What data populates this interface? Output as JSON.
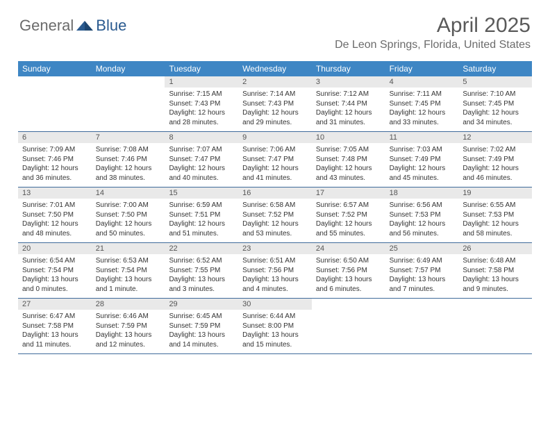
{
  "logo": {
    "text1": "General",
    "text2": "Blue"
  },
  "title": "April 2025",
  "location": "De Leon Springs, Florida, United States",
  "colors": {
    "header_bg": "#3e86c4",
    "header_text": "#ffffff",
    "daynum_bg": "#e9e9e9",
    "border": "#3e6a9a",
    "title_color": "#5a5a5a",
    "location_color": "#6b6b6b",
    "logo_gray": "#6b6b6b",
    "logo_blue": "#2a5a8f"
  },
  "day_headers": [
    "Sunday",
    "Monday",
    "Tuesday",
    "Wednesday",
    "Thursday",
    "Friday",
    "Saturday"
  ],
  "weeks": [
    [
      {
        "n": "",
        "sr": "",
        "ss": "",
        "dl": ""
      },
      {
        "n": "",
        "sr": "",
        "ss": "",
        "dl": ""
      },
      {
        "n": "1",
        "sr": "Sunrise: 7:15 AM",
        "ss": "Sunset: 7:43 PM",
        "dl": "Daylight: 12 hours and 28 minutes."
      },
      {
        "n": "2",
        "sr": "Sunrise: 7:14 AM",
        "ss": "Sunset: 7:43 PM",
        "dl": "Daylight: 12 hours and 29 minutes."
      },
      {
        "n": "3",
        "sr": "Sunrise: 7:12 AM",
        "ss": "Sunset: 7:44 PM",
        "dl": "Daylight: 12 hours and 31 minutes."
      },
      {
        "n": "4",
        "sr": "Sunrise: 7:11 AM",
        "ss": "Sunset: 7:45 PM",
        "dl": "Daylight: 12 hours and 33 minutes."
      },
      {
        "n": "5",
        "sr": "Sunrise: 7:10 AM",
        "ss": "Sunset: 7:45 PM",
        "dl": "Daylight: 12 hours and 34 minutes."
      }
    ],
    [
      {
        "n": "6",
        "sr": "Sunrise: 7:09 AM",
        "ss": "Sunset: 7:46 PM",
        "dl": "Daylight: 12 hours and 36 minutes."
      },
      {
        "n": "7",
        "sr": "Sunrise: 7:08 AM",
        "ss": "Sunset: 7:46 PM",
        "dl": "Daylight: 12 hours and 38 minutes."
      },
      {
        "n": "8",
        "sr": "Sunrise: 7:07 AM",
        "ss": "Sunset: 7:47 PM",
        "dl": "Daylight: 12 hours and 40 minutes."
      },
      {
        "n": "9",
        "sr": "Sunrise: 7:06 AM",
        "ss": "Sunset: 7:47 PM",
        "dl": "Daylight: 12 hours and 41 minutes."
      },
      {
        "n": "10",
        "sr": "Sunrise: 7:05 AM",
        "ss": "Sunset: 7:48 PM",
        "dl": "Daylight: 12 hours and 43 minutes."
      },
      {
        "n": "11",
        "sr": "Sunrise: 7:03 AM",
        "ss": "Sunset: 7:49 PM",
        "dl": "Daylight: 12 hours and 45 minutes."
      },
      {
        "n": "12",
        "sr": "Sunrise: 7:02 AM",
        "ss": "Sunset: 7:49 PM",
        "dl": "Daylight: 12 hours and 46 minutes."
      }
    ],
    [
      {
        "n": "13",
        "sr": "Sunrise: 7:01 AM",
        "ss": "Sunset: 7:50 PM",
        "dl": "Daylight: 12 hours and 48 minutes."
      },
      {
        "n": "14",
        "sr": "Sunrise: 7:00 AM",
        "ss": "Sunset: 7:50 PM",
        "dl": "Daylight: 12 hours and 50 minutes."
      },
      {
        "n": "15",
        "sr": "Sunrise: 6:59 AM",
        "ss": "Sunset: 7:51 PM",
        "dl": "Daylight: 12 hours and 51 minutes."
      },
      {
        "n": "16",
        "sr": "Sunrise: 6:58 AM",
        "ss": "Sunset: 7:52 PM",
        "dl": "Daylight: 12 hours and 53 minutes."
      },
      {
        "n": "17",
        "sr": "Sunrise: 6:57 AM",
        "ss": "Sunset: 7:52 PM",
        "dl": "Daylight: 12 hours and 55 minutes."
      },
      {
        "n": "18",
        "sr": "Sunrise: 6:56 AM",
        "ss": "Sunset: 7:53 PM",
        "dl": "Daylight: 12 hours and 56 minutes."
      },
      {
        "n": "19",
        "sr": "Sunrise: 6:55 AM",
        "ss": "Sunset: 7:53 PM",
        "dl": "Daylight: 12 hours and 58 minutes."
      }
    ],
    [
      {
        "n": "20",
        "sr": "Sunrise: 6:54 AM",
        "ss": "Sunset: 7:54 PM",
        "dl": "Daylight: 13 hours and 0 minutes."
      },
      {
        "n": "21",
        "sr": "Sunrise: 6:53 AM",
        "ss": "Sunset: 7:54 PM",
        "dl": "Daylight: 13 hours and 1 minute."
      },
      {
        "n": "22",
        "sr": "Sunrise: 6:52 AM",
        "ss": "Sunset: 7:55 PM",
        "dl": "Daylight: 13 hours and 3 minutes."
      },
      {
        "n": "23",
        "sr": "Sunrise: 6:51 AM",
        "ss": "Sunset: 7:56 PM",
        "dl": "Daylight: 13 hours and 4 minutes."
      },
      {
        "n": "24",
        "sr": "Sunrise: 6:50 AM",
        "ss": "Sunset: 7:56 PM",
        "dl": "Daylight: 13 hours and 6 minutes."
      },
      {
        "n": "25",
        "sr": "Sunrise: 6:49 AM",
        "ss": "Sunset: 7:57 PM",
        "dl": "Daylight: 13 hours and 7 minutes."
      },
      {
        "n": "26",
        "sr": "Sunrise: 6:48 AM",
        "ss": "Sunset: 7:58 PM",
        "dl": "Daylight: 13 hours and 9 minutes."
      }
    ],
    [
      {
        "n": "27",
        "sr": "Sunrise: 6:47 AM",
        "ss": "Sunset: 7:58 PM",
        "dl": "Daylight: 13 hours and 11 minutes."
      },
      {
        "n": "28",
        "sr": "Sunrise: 6:46 AM",
        "ss": "Sunset: 7:59 PM",
        "dl": "Daylight: 13 hours and 12 minutes."
      },
      {
        "n": "29",
        "sr": "Sunrise: 6:45 AM",
        "ss": "Sunset: 7:59 PM",
        "dl": "Daylight: 13 hours and 14 minutes."
      },
      {
        "n": "30",
        "sr": "Sunrise: 6:44 AM",
        "ss": "Sunset: 8:00 PM",
        "dl": "Daylight: 13 hours and 15 minutes."
      },
      {
        "n": "",
        "sr": "",
        "ss": "",
        "dl": ""
      },
      {
        "n": "",
        "sr": "",
        "ss": "",
        "dl": ""
      },
      {
        "n": "",
        "sr": "",
        "ss": "",
        "dl": ""
      }
    ]
  ]
}
